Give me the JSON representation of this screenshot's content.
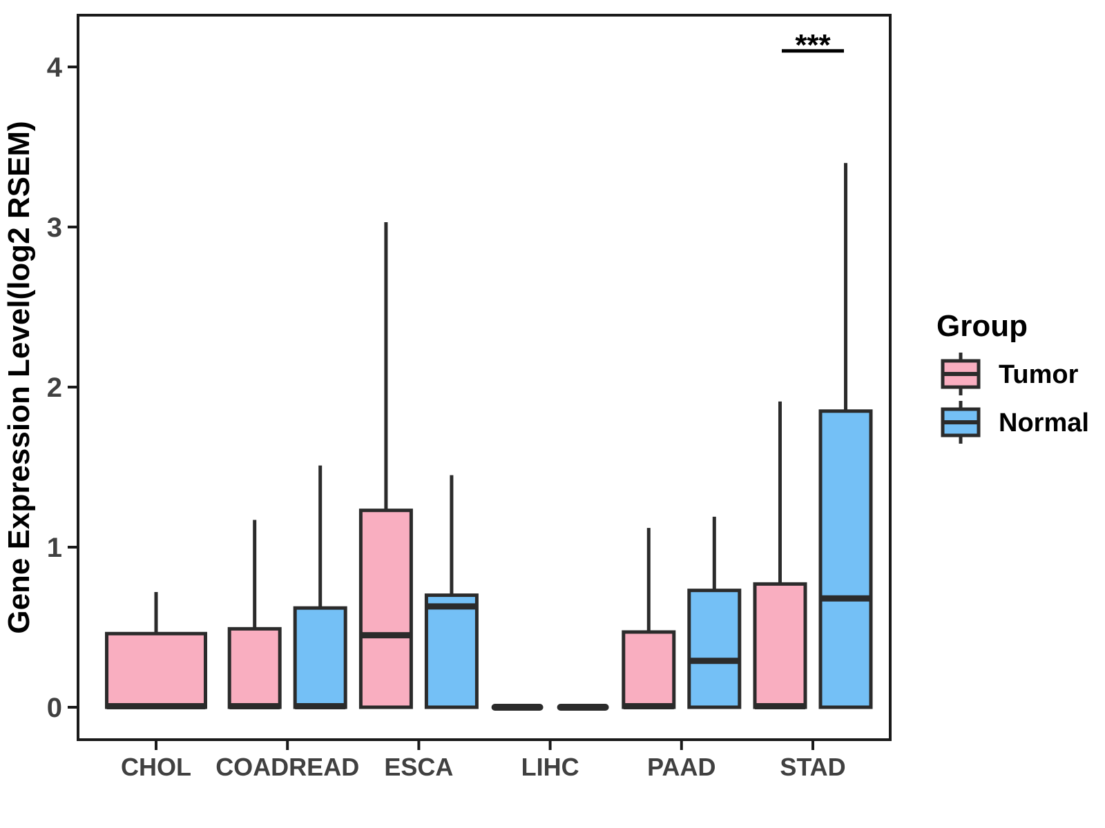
{
  "legend": {
    "title": "Group"
  },
  "style": {
    "background": "#FFFFFF",
    "box_stroke": "#2B2B2B",
    "axis_color": "#1A1A1A",
    "tick_label_color": "#404040",
    "axis_title_color": "#000000",
    "tumor_fill": "#F9AEC0",
    "normal_fill": "#74C0F6"
  },
  "chart_data": {
    "type": "boxplot",
    "title": "",
    "xlabel": "",
    "ylabel": "Gene Expression Level(log2 RSEM)",
    "categories": [
      "CHOL",
      "COADREAD",
      "ESCA",
      "LIHC",
      "PAAD",
      "STAD"
    ],
    "yticks": [
      0,
      1,
      2,
      3,
      4
    ],
    "ylim": [
      -0.2,
      4.32
    ],
    "grid": false,
    "legend_position": "right",
    "series": [
      {
        "name": "Tumor",
        "fill": "#F9AEC0",
        "boxes": [
          {
            "min": 0,
            "q1": 0,
            "median": 0,
            "q3": 0.46,
            "max": 0.72
          },
          {
            "min": 0,
            "q1": 0,
            "median": 0,
            "q3": 0.49,
            "max": 1.17
          },
          {
            "min": 0,
            "q1": 0,
            "median": 0.45,
            "q3": 1.23,
            "max": 3.03
          },
          {
            "min": 0,
            "q1": 0,
            "median": 0,
            "q3": 0,
            "max": 0
          },
          {
            "min": 0,
            "q1": 0,
            "median": 0,
            "q3": 0.47,
            "max": 1.12
          },
          {
            "min": 0,
            "q1": 0,
            "median": 0,
            "q3": 0.77,
            "max": 1.91
          }
        ]
      },
      {
        "name": "Normal",
        "fill": "#74C0F6",
        "boxes": [
          null,
          {
            "min": 0,
            "q1": 0,
            "median": 0,
            "q3": 0.62,
            "max": 1.51
          },
          {
            "min": 0,
            "q1": 0,
            "median": 0.63,
            "q3": 0.7,
            "max": 1.45
          },
          {
            "min": 0,
            "q1": 0,
            "median": 0,
            "q3": 0,
            "max": 0
          },
          {
            "min": 0,
            "q1": 0,
            "median": 0.29,
            "q3": 0.73,
            "max": 1.19
          },
          {
            "min": 0,
            "q1": 0,
            "median": 0.68,
            "q3": 1.85,
            "max": 3.4
          }
        ]
      }
    ],
    "annotation": {
      "text": "***",
      "category": "STAD",
      "bar_value": 4.1
    }
  }
}
